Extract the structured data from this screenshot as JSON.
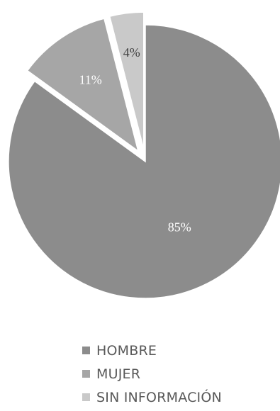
{
  "chart_data": {
    "type": "pie",
    "title": "",
    "start_angle_deg": 0,
    "direction": "clockwise",
    "exploded": [
      false,
      true,
      true
    ],
    "slices": [
      {
        "label": "HOMBRE",
        "value": 85,
        "display": "85%",
        "color": "#8c8c8c",
        "label_color": "#ffffff"
      },
      {
        "label": "MUJER",
        "value": 11,
        "display": "11%",
        "color": "#a6a6a6",
        "label_color": "#ffffff"
      },
      {
        "label": "SIN INFORMACIÓN",
        "value": 4,
        "display": "4%",
        "color": "#c9c9c9",
        "label_color": "#404040"
      }
    ],
    "legend": {
      "position": "bottom"
    }
  }
}
